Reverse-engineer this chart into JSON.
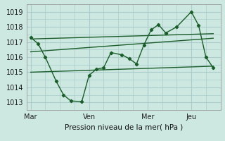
{
  "background_color": "#cce8e0",
  "grid_color": "#aacccc",
  "line_color": "#1a5c2a",
  "title": "Pression niveau de la mer( hPa )",
  "ylim": [
    1012.5,
    1019.5
  ],
  "yticks": [
    1013,
    1014,
    1015,
    1016,
    1017,
    1018,
    1019
  ],
  "day_labels": [
    "Mar",
    "Ven",
    "Mer",
    "Jeu"
  ],
  "day_positions": [
    0,
    16,
    32,
    44
  ],
  "xlim": [
    -1,
    52
  ],
  "main_line_x": [
    0,
    2,
    4,
    7,
    9,
    11,
    14,
    16,
    18,
    20,
    22,
    25,
    27,
    29,
    31,
    33,
    35,
    37,
    40,
    44,
    46,
    48,
    50
  ],
  "main_line_y": [
    1017.3,
    1016.9,
    1016.0,
    1014.4,
    1013.5,
    1013.1,
    1013.05,
    1014.8,
    1015.2,
    1015.3,
    1016.3,
    1016.15,
    1015.9,
    1015.55,
    1016.8,
    1017.8,
    1018.15,
    1017.6,
    1018.0,
    1019.0,
    1018.1,
    1016.0,
    1015.3
  ],
  "trend1_x": [
    0,
    50
  ],
  "trend1_y": [
    1017.2,
    1017.55
  ],
  "trend2_x": [
    0,
    50
  ],
  "trend2_y": [
    1016.35,
    1017.25
  ],
  "trend3_x": [
    0,
    50
  ],
  "trend3_y": [
    1015.0,
    1015.4
  ],
  "vline_positions": [
    0,
    16,
    32,
    44
  ],
  "xtick_minor_positions": [
    4,
    8,
    12,
    20,
    24,
    28,
    36,
    40,
    48
  ],
  "ytick_minor_positions": [
    1013.5,
    1014.5,
    1015.5,
    1016.5,
    1017.5,
    1018.5
  ]
}
